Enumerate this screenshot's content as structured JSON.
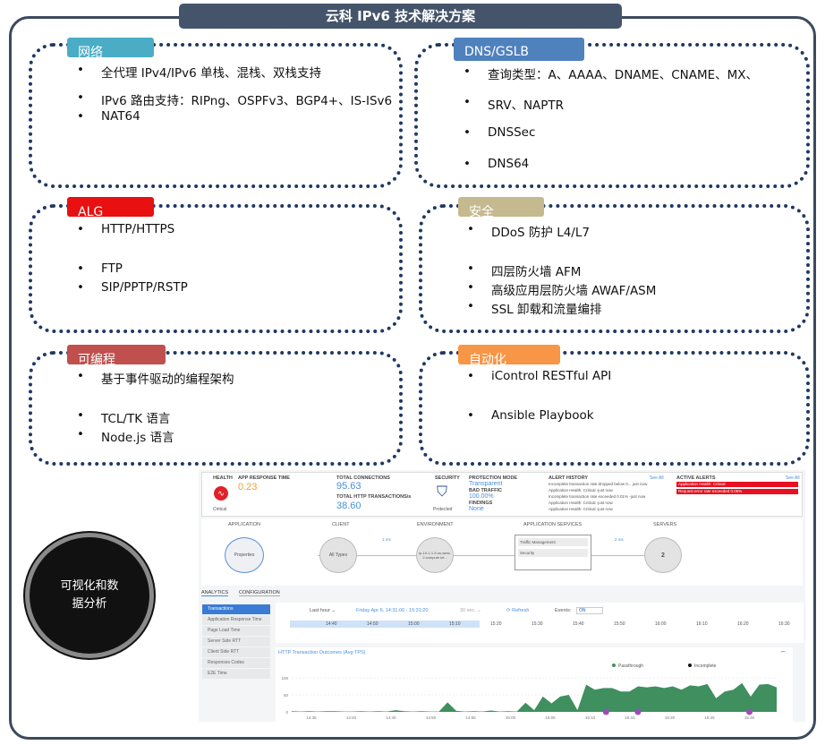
{
  "title": "云科 IPv6 技术解决方案",
  "sections": [
    {
      "tag": "网络",
      "color": "#4bacc6",
      "items": [
        "全代理 IPv4/IPv6 单栈、混栈、双栈支持",
        "IPv6 路由支持：RIPng、OSPFv3、BGP4+、IS-ISv6",
        "NAT64"
      ]
    },
    {
      "tag": "DNS/GSLB",
      "color": "#4f81bd",
      "items": [
        "查询类型：A、AAAA、DNAME、CNAME、MX、",
        "SRV、NAPTR",
        "DNSSec",
        "DNS64"
      ]
    },
    {
      "tag": "ALG",
      "color": "#e81010",
      "items": [
        "HTTP/HTTPS",
        "FTP",
        "SIP/PPTP/RSTP"
      ]
    },
    {
      "tag": "安全",
      "color": "#c4b98f",
      "items": [
        "DDoS 防护 L4/L7",
        "四层防火墙 AFM",
        "高级应用层防火墙 AWAF/ASM",
        "SSL 卸载和流量编排"
      ]
    },
    {
      "tag": "可编程",
      "color": "#c0504d",
      "items": [
        "基于事件驱动的编程架构",
        "TCL/TK 语言",
        "Node.js 语言"
      ]
    },
    {
      "tag": "自动化",
      "color": "#f79646",
      "items": [
        "iControl RESTful API",
        "Ansible Playbook"
      ]
    }
  ],
  "circle": "可视化和数据分析",
  "dashboard": {
    "health": "HEALTH",
    "health_status": "Critical",
    "app_rt_label": "APP RESPONSE TIME",
    "app_rt": "0.23",
    "conn_label": "TOTAL CONNECTIONS",
    "conn": "95.63",
    "http_label": "TOTAL HTTP TRANSACTIONS/s",
    "http": "38.60",
    "security": "SECURITY",
    "security_status": "Protected",
    "prot_label": "PROTECTION MODE",
    "prot": "Transparent",
    "bad_label": "BAD TRAFFIC",
    "bad": "100.00%",
    "find_label": "FINDINGS",
    "find": "None",
    "alert_hist": "ALERT HISTORY",
    "see_all": "See All",
    "alerts": [
      "Incomplete transaction rate dropped below 0... just now",
      "Application Health: Critical -just now",
      "Incomplete transaction rate exceeded 0.01% -just now",
      "Application Health: Critical -just now",
      "Application Health: Critical -just now"
    ],
    "active_alerts": "ACTIVE ALERTS",
    "active": [
      "Application Health: Critical",
      "Request error rate exceeded 0.05%"
    ],
    "flow": {
      "application": "APPLICATION",
      "client": "CLIENT",
      "environment": "ENVIRONMENT",
      "services": "APPLICATION SERVICES",
      "servers": "SERVERS",
      "properties": "Properties",
      "all_types": "All Types",
      "env_node": "ip-10-1-1-9.us-west-2.compute.int...",
      "traffic": "Traffic Management",
      "security": "Security",
      "servers_count": "2",
      "client_ms": "1 ms",
      "server_ms": "2 ms"
    },
    "tabs": [
      "ANALYTICS",
      "CONFIGURATION"
    ],
    "menu": [
      "Transactions",
      "Application Response Time",
      "Page Load Time",
      "Server Side RTT",
      "Client Side RTT",
      "Responses Codes",
      "E2E Time"
    ],
    "range": "Last hour ⌄",
    "period": "Friday Apr 6, 14:31:00 - 15:31:20",
    "interval": "30 sec. ⌄",
    "refresh": "⟳ Refresh",
    "events": "Events:",
    "events_state": "ON",
    "timeline": [
      "14:40",
      "14:50",
      "15:00",
      "15:10",
      "15:20",
      "15:30",
      "15:40",
      "15:50",
      "16:00",
      "16:10",
      "16:20",
      "16:30"
    ]
  },
  "chart_data": {
    "type": "area",
    "title": "HTTP Transaction Outcomes (Avg TPS)",
    "legend": [
      {
        "name": "Passthrough",
        "color": "#3f8f5f"
      },
      {
        "name": "Incomplete",
        "color": "#111111"
      }
    ],
    "legend_placement": "top-right",
    "ylim": [
      0,
      100
    ],
    "yticks": [
      "0",
      "50",
      "100"
    ],
    "xticks": [
      "14:35",
      "14:40",
      "14:45",
      "14:50",
      "14:55",
      "15:00",
      "15:05",
      "15:10",
      "15:15",
      "15:20",
      "15:25",
      "15:30"
    ],
    "series": [
      {
        "name": "Passthrough",
        "values": [
          2,
          1,
          2,
          1,
          2,
          2,
          1,
          1,
          2,
          1,
          2,
          1,
          5,
          2,
          1,
          2,
          1,
          1,
          28,
          3,
          1,
          2,
          1,
          4,
          1,
          2,
          1,
          27,
          5,
          45,
          25,
          45,
          50,
          5,
          80,
          65,
          70,
          70,
          60,
          60,
          75,
          72,
          75,
          70,
          75,
          65,
          78,
          75,
          82,
          40,
          60,
          65,
          85,
          45,
          80,
          82,
          72
        ]
      }
    ],
    "event_markers": [
      "15:12",
      "15:16",
      "15:30"
    ]
  }
}
